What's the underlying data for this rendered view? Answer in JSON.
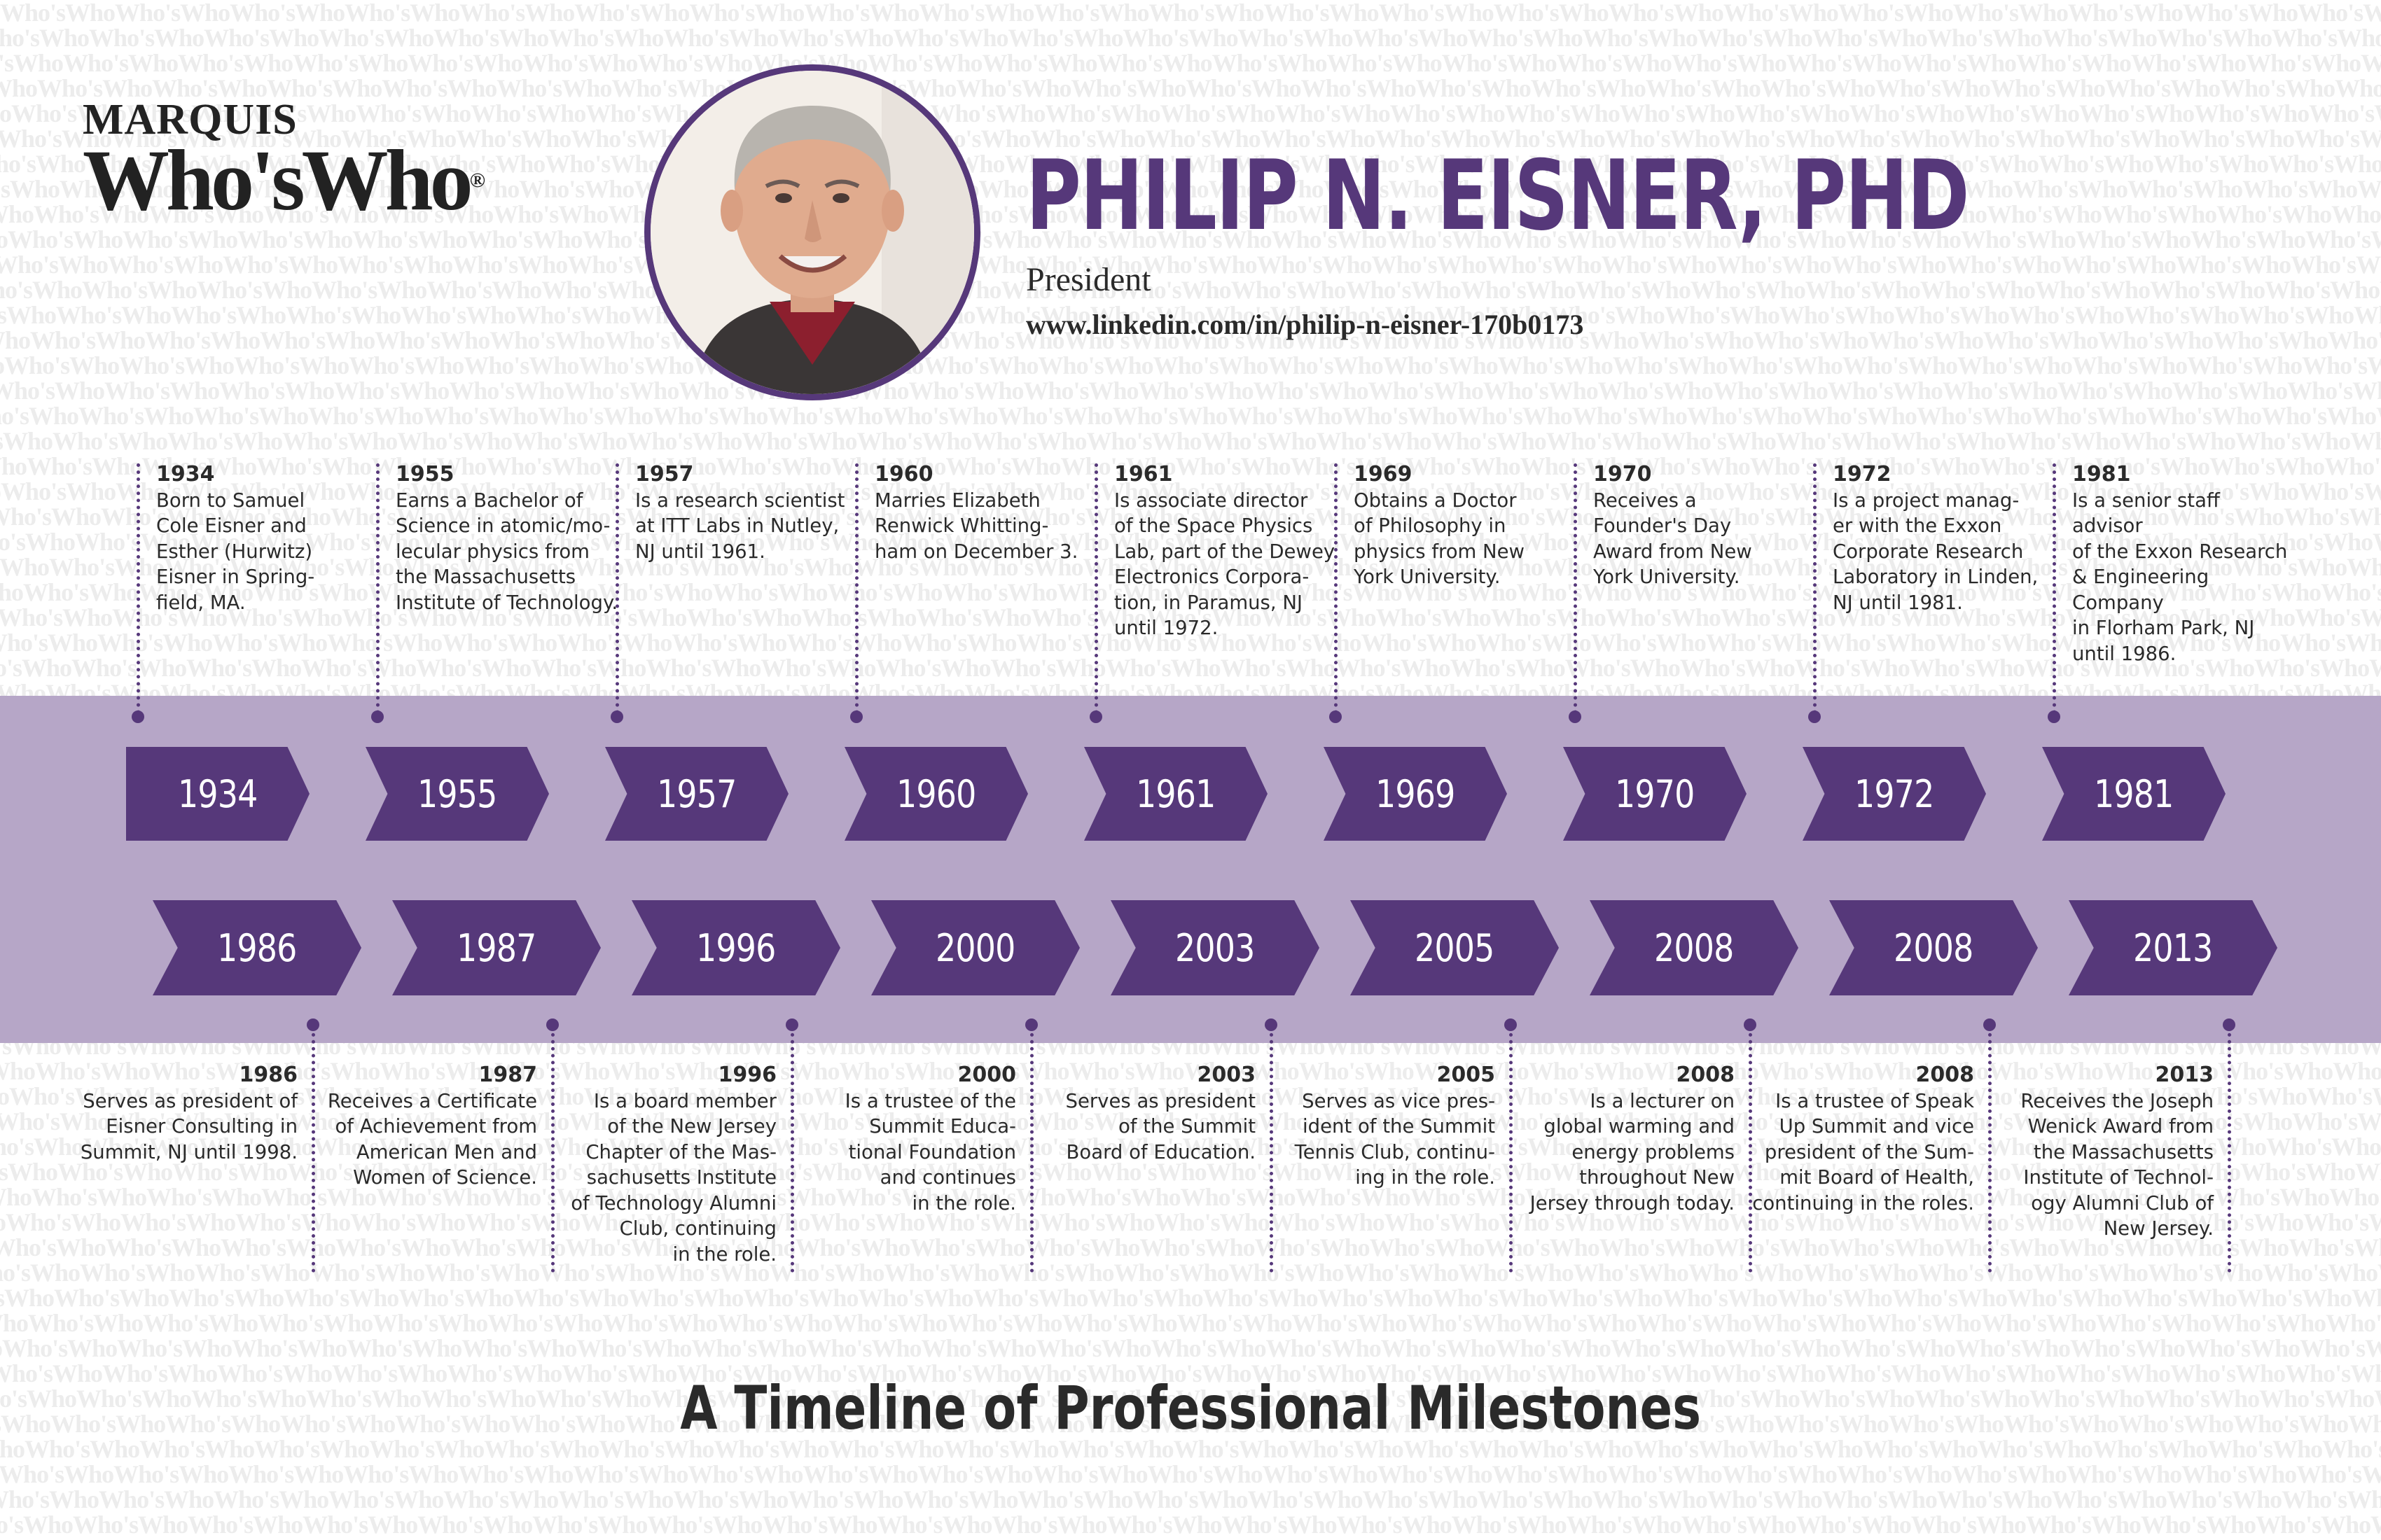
{
  "brand": {
    "line1": "MARQUIS",
    "line2": "Who'sWho",
    "mark": "®"
  },
  "watermark": "Who'sWho",
  "profile": {
    "name": "PHILIP N. EISNER, PHD",
    "title": "President",
    "link": "www.linkedin.com/in/philip-n-eisner-170b0173"
  },
  "colors": {
    "primary": "#56387a",
    "band": "#b6a6c7",
    "text": "#2a2a2a"
  },
  "timeline_top": [
    {
      "year": "1934",
      "text": "Born to Samuel\nCole Eisner and\nEsther (Hurwitz)\nEisner in Spring-\nfield, MA."
    },
    {
      "year": "1955",
      "text": "Earns a Bachelor of\nScience in atomic/mo-\nlecular physics from\nthe Massachusetts\nInstitute of Technology."
    },
    {
      "year": "1957",
      "text": "Is a research scientist\nat ITT Labs in Nutley,\nNJ until 1961."
    },
    {
      "year": "1960",
      "text": "Marries Elizabeth\nRenwick Whitting-\nham on December 3."
    },
    {
      "year": "1961",
      "text": "Is associate director\nof the Space Physics\nLab, part of the Dewey\nElectronics Corpora-\ntion, in Paramus, NJ\nuntil 1972."
    },
    {
      "year": "1969",
      "text": "Obtains a Doctor\nof Philosophy in\nphysics from New\nYork University."
    },
    {
      "year": "1970",
      "text": "Receives a\nFounder's Day\nAward from New\nYork University."
    },
    {
      "year": "1972",
      "text": "Is a project manag-\ner with the Exxon\nCorporate Research\nLaboratory in Linden,\nNJ until 1981."
    },
    {
      "year": "1981",
      "text": "Is a senior staff advisor\nof the Exxon Research\n& Engineering Company\nin Florham Park, NJ\nuntil 1986."
    }
  ],
  "timeline_bottom": [
    {
      "year": "1986",
      "text": "Serves as president of\nEisner Consulting in\nSummit, NJ until 1998."
    },
    {
      "year": "1987",
      "text": "Receives a Certificate\nof Achievement from\nAmerican Men and\nWomen of Science."
    },
    {
      "year": "1996",
      "text": "Is a board member\nof the New Jersey\nChapter of the Mas-\nsachusetts Institute\nof Technology Alumni\nClub, continuing\nin the role."
    },
    {
      "year": "2000",
      "text": "Is a trustee of the\nSummit Educa-\ntional Foundation\nand continues\nin the role."
    },
    {
      "year": "2003",
      "text": "Serves as president\nof the Summit\nBoard of Education."
    },
    {
      "year": "2005",
      "text": "Serves as vice pres-\nident of the Summit\nTennis Club, continu-\ning in the role."
    },
    {
      "year": "2008",
      "text": "Is a lecturer on\nglobal warming and\nenergy problems\nthroughout New\nJersey through today."
    },
    {
      "year": "2008",
      "text": "Is a trustee of Speak\nUp Summit and vice\npresident of the Sum-\nmit Board of Health,\ncontinuing in the roles."
    },
    {
      "year": "2013",
      "text": "Receives the Joseph\nWenick Award from\nthe Massachusetts\nInstitute of Technol-\nogy Alumni Club of\nNew Jersey."
    }
  ],
  "footer": {
    "title": "A Timeline of Professional Milestones"
  }
}
